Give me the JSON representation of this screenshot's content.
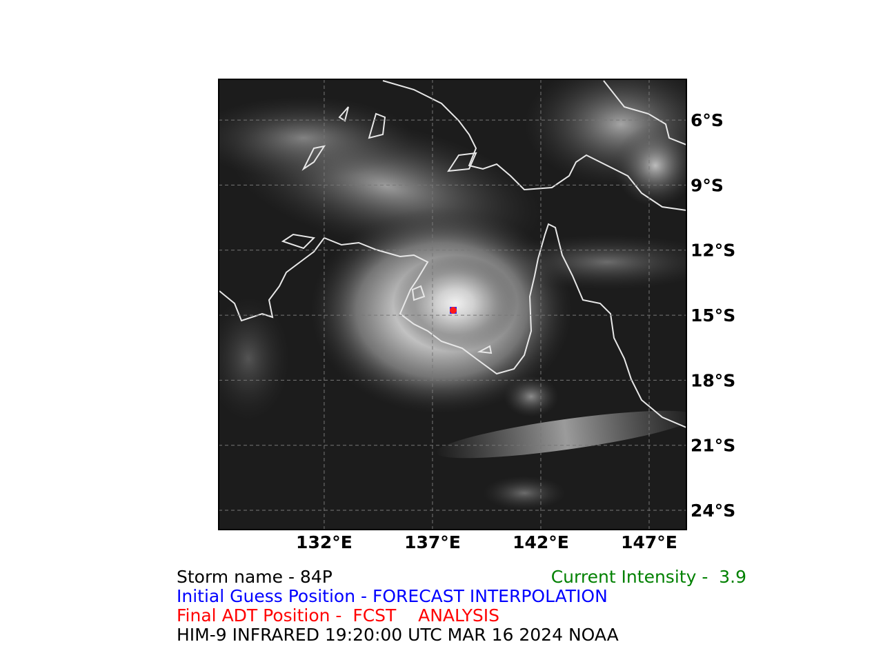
{
  "map": {
    "xlim": [
      127.13,
      148.72
    ],
    "ylim": [
      -24.89,
      -4.12
    ],
    "xticks": [
      {
        "value": 132,
        "label": "132°E"
      },
      {
        "value": 137,
        "label": "137°E"
      },
      {
        "value": 142,
        "label": "142°E"
      },
      {
        "value": 147,
        "label": "147°E"
      }
    ],
    "yticks": [
      {
        "value": -6,
        "label": "6°S"
      },
      {
        "value": -9,
        "label": "9°S"
      },
      {
        "value": -12,
        "label": "12°S"
      },
      {
        "value": -15,
        "label": "15°S"
      },
      {
        "value": -18,
        "label": "18°S"
      },
      {
        "value": -21,
        "label": "21°S"
      },
      {
        "value": -24,
        "label": "24°S"
      }
    ],
    "grid": true
  },
  "caption": {
    "storm_name": "Storm name - 84P",
    "current_intensity": "Current Intensity -  3.9",
    "initial_guess": "Initial Guess Position - FORECAST INTERPOLATION",
    "final_position": "Final ADT Position -  FCST    ANALYSIS",
    "source": "HIM-9 INFRARED 19:20:00 UTC MAR 16 2024 NOAA"
  }
}
